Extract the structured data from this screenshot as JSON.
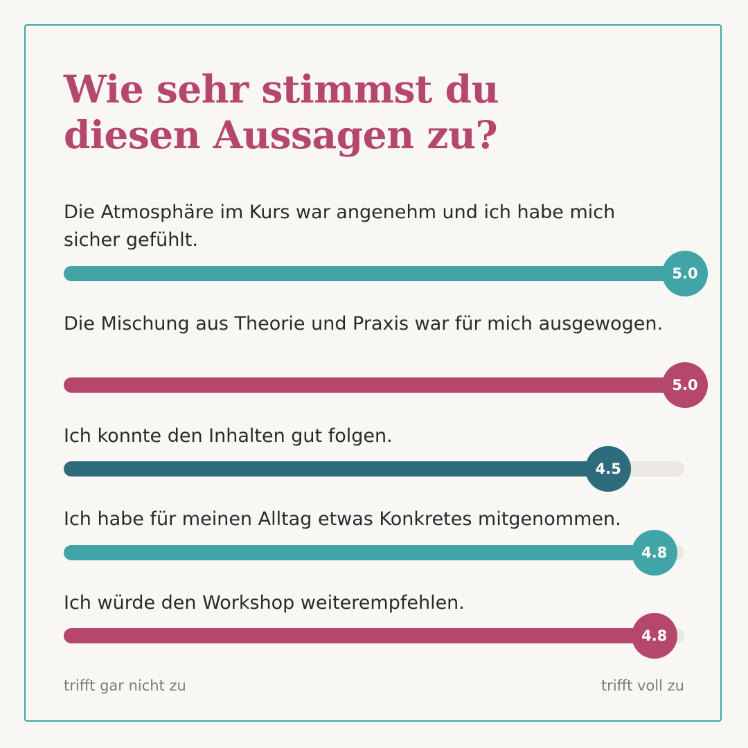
{
  "chart_data": {
    "type": "bar",
    "title": "Wie sehr stimmst du diesen Aussagen zu?",
    "title_lines": [
      "Wie sehr stimmst du",
      "diesen Aussagen zu?"
    ],
    "categories": [
      "Die Atmosphäre im Kurs war angenehm und ich habe mich sicher gefühlt.",
      "Die Mischung aus Theorie und Praxis war für mich ausgewogen.",
      "Ich konnte den Inhalten gut folgen.",
      "Ich habe für meinen Alltag etwas Konkretes mitgenommen.",
      "Ich würde den Workshop weiterempfehlen."
    ],
    "values": [
      5.0,
      5.0,
      4.5,
      4.8,
      4.8
    ],
    "value_labels": [
      "5.0",
      "5.0",
      "4.5",
      "4.8",
      "4.8"
    ],
    "bar_colors": [
      "#41a5a8",
      "#b5476d",
      "#2e6b7d",
      "#41a5a8",
      "#b5476d"
    ],
    "track_color": "#ebe7e2",
    "xlim": [
      1,
      5
    ],
    "scale_min_label": "trifft gar nicht zu",
    "scale_max_label": "trifft voll zu",
    "orientation": "horizontal",
    "grid": false
  },
  "colors": {
    "background": "#f8f7f4",
    "border": "#41a5a8",
    "title": "#b5476d",
    "text": "#2a2a2a",
    "muted": "#7b7b7b"
  }
}
